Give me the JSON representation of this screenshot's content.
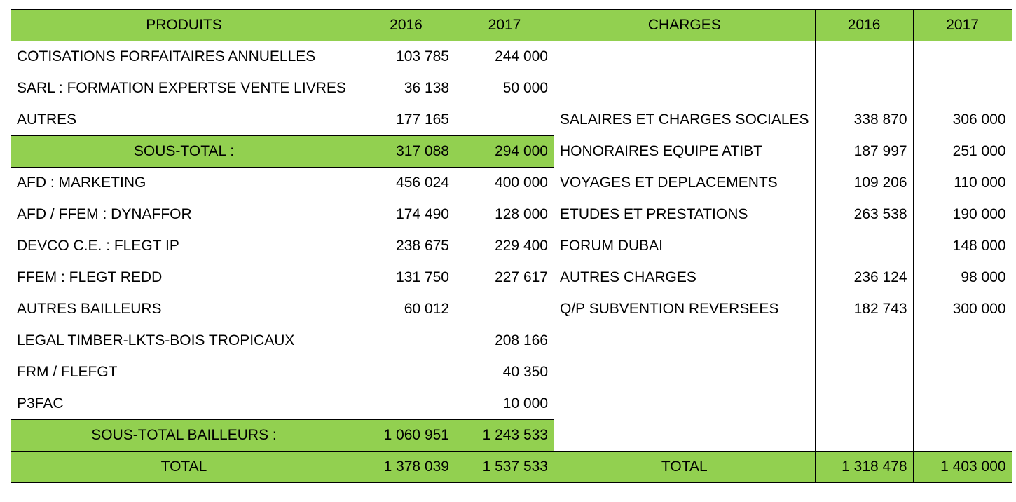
{
  "header": {
    "produits": "PRODUITS",
    "charges": "CHARGES",
    "y2016": "2016",
    "y2017": "2017"
  },
  "produits_rows": [
    {
      "label": "COTISATIONS FORFAITAIRES ANNUELLES",
      "v2016": "103 785",
      "v2017": "244 000"
    },
    {
      "label": "SARL : FORMATION EXPERTSE VENTE LIVRES",
      "v2016": "36 138",
      "v2017": "50 000"
    },
    {
      "label": "AUTRES",
      "v2016": "177 165",
      "v2017": ""
    }
  ],
  "sous_total": {
    "label": "SOUS-TOTAL :",
    "v2016": "317 088",
    "v2017": "294 000"
  },
  "bailleurs_rows": [
    {
      "label": "AFD : MARKETING",
      "v2016": "456 024",
      "v2017": "400 000"
    },
    {
      "label": "AFD / FFEM : DYNAFFOR",
      "v2016": "174 490",
      "v2017": "128 000"
    },
    {
      "label": "DEVCO C.E. : FLEGT IP",
      "v2016": "238 675",
      "v2017": "229 400"
    },
    {
      "label": "FFEM : FLEGT REDD",
      "v2016": "131 750",
      "v2017": "227 617"
    },
    {
      "label": "AUTRES BAILLEURS",
      "v2016": "60 012",
      "v2017": ""
    },
    {
      "label": "LEGAL TIMBER-LKTS-BOIS TROPICAUX",
      "v2016": "",
      "v2017": "208 166"
    },
    {
      "label": "FRM / FLEFGT",
      "v2016": "",
      "v2017": "40 350"
    },
    {
      "label": "P3FAC",
      "v2016": "",
      "v2017": "10 000"
    }
  ],
  "sous_total_bailleurs": {
    "label": "SOUS-TOTAL BAILLEURS :",
    "v2016": "1 060 951",
    "v2017": "1 243 533"
  },
  "total_produits": {
    "label": "TOTAL",
    "v2016": "1 378 039",
    "v2017": "1 537 533"
  },
  "charges_rows": [
    {
      "label": "SALAIRES ET CHARGES SOCIALES",
      "v2016": "338 870",
      "v2017": "306 000"
    },
    {
      "label": "HONORAIRES EQUIPE ATIBT",
      "v2016": "187 997",
      "v2017": "251 000"
    },
    {
      "label": "VOYAGES ET DEPLACEMENTS",
      "v2016": "109 206",
      "v2017": "110 000"
    },
    {
      "label": "ETUDES ET PRESTATIONS",
      "v2016": "263 538",
      "v2017": "190 000"
    },
    {
      "label": "FORUM DUBAI",
      "v2016": "",
      "v2017": "148 000"
    },
    {
      "label": "AUTRES CHARGES",
      "v2016": "236 124",
      "v2017": "98 000"
    },
    {
      "label": "Q/P SUBVENTION REVERSEES",
      "v2016": "182 743",
      "v2017": "300 000"
    }
  ],
  "total_charges": {
    "label": "TOTAL",
    "v2016": "1 318 478",
    "v2017": "1 403 000"
  },
  "colors": {
    "header_green": "#92d050",
    "border": "#000000"
  }
}
